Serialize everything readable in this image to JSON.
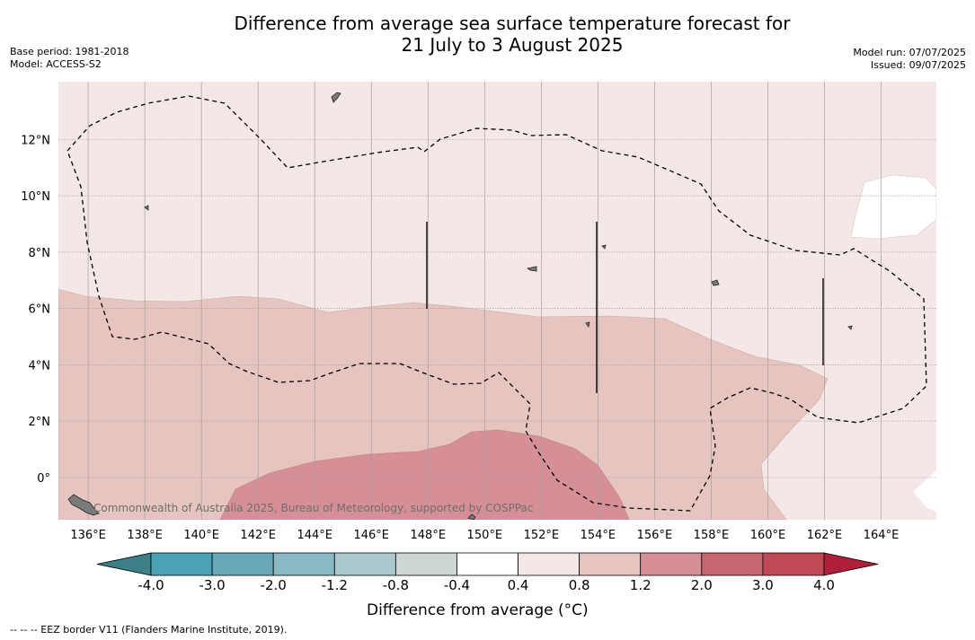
{
  "title": {
    "line1": "Difference from average sea surface temperature forecast for",
    "line2": "21 July to 3 August 2025"
  },
  "meta": {
    "base_period": "Base period: 1981-2018",
    "model": "Model: ACCESS-S2",
    "model_run": "Model run: 07/07/2025",
    "issued": "Issued: 09/07/2025"
  },
  "map": {
    "lat_labels": [
      "12°N",
      "10°N",
      "8°N",
      "6°N",
      "4°N",
      "2°N",
      "0°"
    ],
    "lon_labels": [
      "136°E",
      "138°E",
      "140°E",
      "142°E",
      "144°E",
      "146°E",
      "148°E",
      "150°E",
      "152°E",
      "154°E",
      "156°E",
      "158°E",
      "160°E",
      "162°E",
      "164°E"
    ],
    "credit": "Commonwealth of Australia 2025, Bureau of Meteorology, supported by COSPPac",
    "colors": {
      "anom_0_4_0_8": "#f4e8e6",
      "anom_0_8_1_2": "#e6c5c1",
      "anom_1_2_2_0": "#d68f96",
      "land": "#7a7a7a"
    }
  },
  "colorbar": {
    "ticks": [
      "-4.0",
      "-3.0",
      "-2.0",
      "-1.2",
      "-0.8",
      "-0.4",
      "0.4",
      "0.8",
      "1.2",
      "2.0",
      "3.0",
      "4.0"
    ],
    "colors": [
      "#3c7f86",
      "#4aa3b5",
      "#68a9b9",
      "#8ab8c3",
      "#aac8cd",
      "#ced6d5",
      "#ffffff",
      "#f4e8e6",
      "#e6c5c1",
      "#d68f96",
      "#c86670",
      "#c04958",
      "#b01f3a"
    ],
    "label": "Difference from average (°C)"
  },
  "footer": "--  --  -- EEZ border V11 (Flanders Marine Institute, 2019)."
}
